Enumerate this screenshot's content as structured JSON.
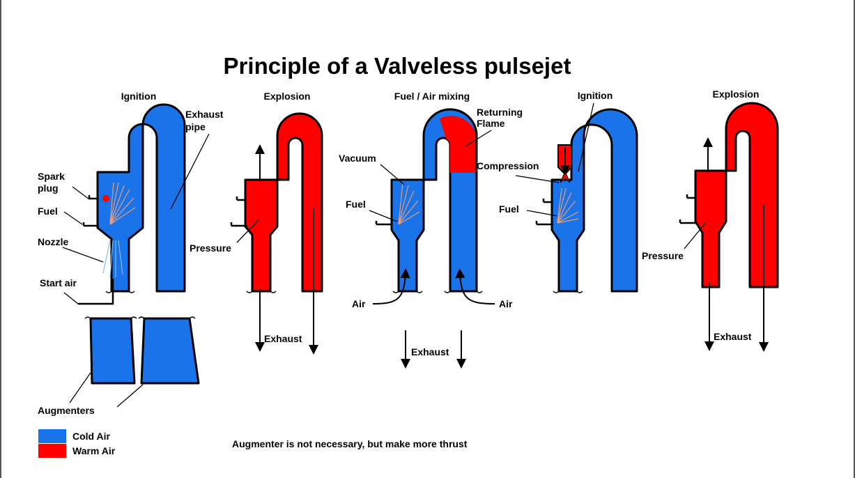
{
  "title": "Principle of a Valveless pulsejet",
  "colors": {
    "cold": "#1a73e8",
    "warm": "#ff0000"
  },
  "stages": [
    {
      "label": "Ignition"
    },
    {
      "label": "Explosion"
    },
    {
      "label": "Fuel / Air mixing"
    },
    {
      "label": "Ignition"
    },
    {
      "label": "Explosion"
    }
  ],
  "labels": {
    "exhaust_pipe": [
      "Exhaust",
      "pipe"
    ],
    "spark_plug": [
      "Spark",
      "plug"
    ],
    "fuel": "Fuel",
    "nozzle": "Nozzle",
    "start_air": "Start air",
    "augmenters": "Augmenters",
    "pressure": "Pressure",
    "exhaust": "Exhaust",
    "vacuum": "Vacuum",
    "returning_flame": [
      "Returning",
      "Flame"
    ],
    "air": "Air",
    "compression": "Compression"
  },
  "legend": [
    {
      "label": "Cold Air",
      "color": "#1a73e8"
    },
    {
      "label": "Warm Air",
      "color": "#ff0000"
    }
  ],
  "note": "Augmenter is not necessary, but make more thrust"
}
